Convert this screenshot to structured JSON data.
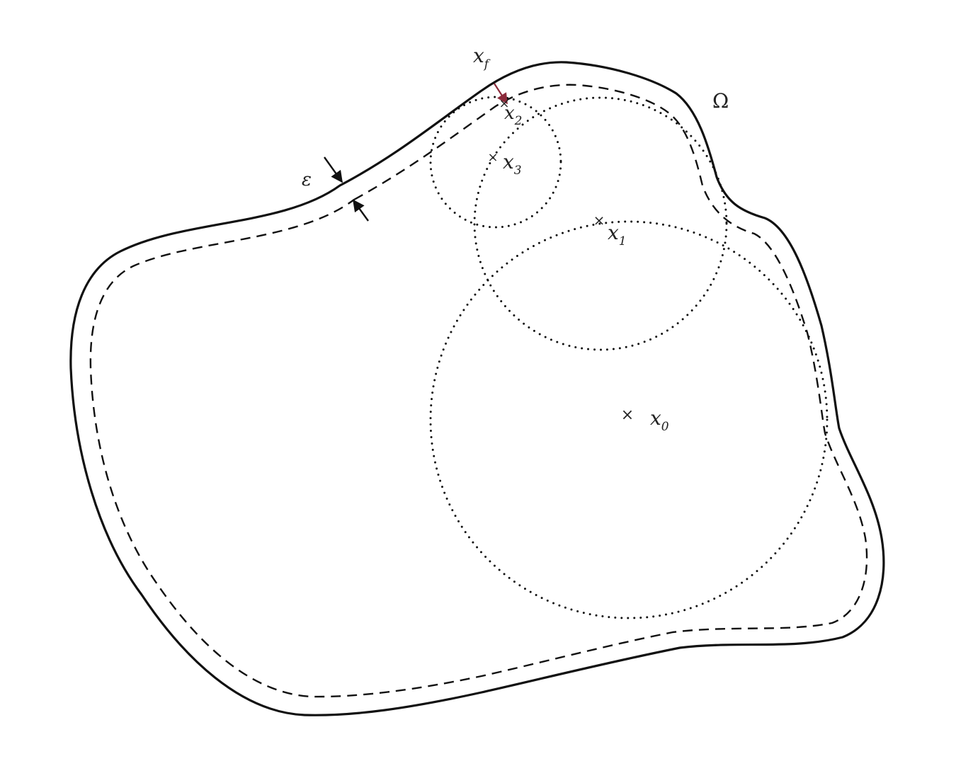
{
  "labels": {
    "omega": "Ω",
    "epsilon": "ε",
    "xf": {
      "base": "x",
      "sub": "f"
    },
    "x0": {
      "base": "x",
      "sub": "0"
    },
    "x1": {
      "base": "x",
      "sub": "1"
    },
    "x2": {
      "base": "x",
      "sub": "2"
    },
    "x3": {
      "base": "x",
      "sub": "3"
    }
  },
  "point_marker": "×",
  "colors": {
    "stroke": "#111111",
    "xf_arrow": "#8b2a3a"
  }
}
